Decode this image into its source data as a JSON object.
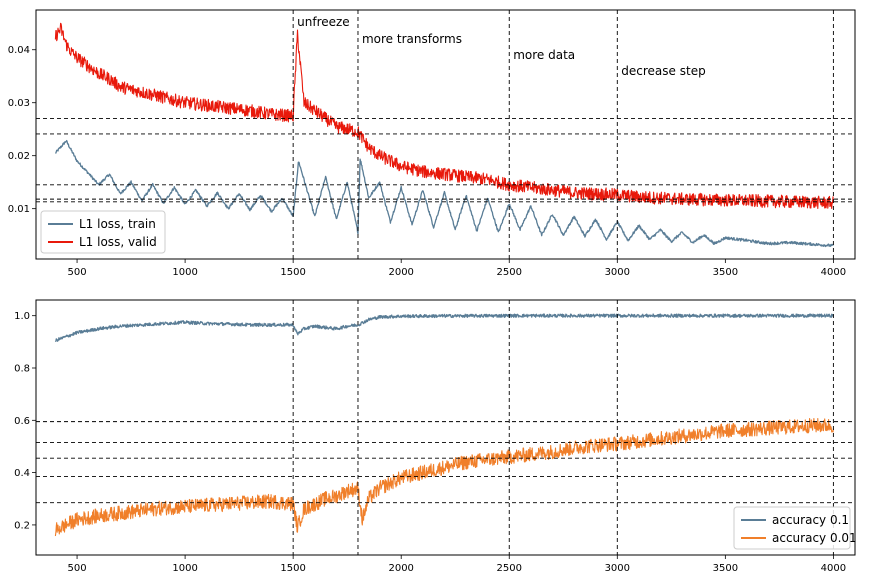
{
  "chart_data": [
    {
      "type": "line",
      "title": "",
      "xlabel": "",
      "ylabel": "",
      "xlim": [
        310,
        4100
      ],
      "ylim": [
        0.0005,
        0.0475
      ],
      "xticks": [
        500,
        1000,
        1500,
        2000,
        2500,
        3000,
        3500,
        4000
      ],
      "yticks": [
        0.01,
        0.02,
        0.03,
        0.04
      ],
      "xtick_labels": [
        "500",
        "1000",
        "1500",
        "2000",
        "2500",
        "3000",
        "3500",
        "4000"
      ],
      "ytick_labels": [
        "0.01",
        "0.02",
        "0.03",
        "0.04"
      ],
      "grid": false,
      "legend": "lower-left",
      "vlines": [
        1500,
        1800,
        2500,
        3000,
        4000
      ],
      "hlines": [
        0.027,
        0.0241,
        0.0145,
        0.0118,
        0.0113
      ],
      "annotations": [
        {
          "text": "unfreeze",
          "x": 1500,
          "y": 0.0445
        },
        {
          "text": "more transforms",
          "x": 1800,
          "y": 0.0415
        },
        {
          "text": "more data",
          "x": 2500,
          "y": 0.0385
        },
        {
          "text": "decrease step",
          "x": 3000,
          "y": 0.035
        }
      ],
      "series": [
        {
          "name": "L1 loss, train",
          "color": "#5a7d96",
          "x": [
            400,
            450,
            500,
            550,
            600,
            650,
            700,
            750,
            800,
            850,
            900,
            950,
            1000,
            1050,
            1100,
            1150,
            1200,
            1250,
            1300,
            1350,
            1400,
            1450,
            1500,
            1525,
            1550,
            1600,
            1650,
            1700,
            1750,
            1800,
            1810,
            1850,
            1900,
            1950,
            2000,
            2050,
            2100,
            2150,
            2200,
            2250,
            2300,
            2350,
            2400,
            2450,
            2500,
            2550,
            2600,
            2650,
            2700,
            2750,
            2800,
            2850,
            2900,
            2950,
            3000,
            3050,
            3100,
            3150,
            3200,
            3250,
            3300,
            3350,
            3400,
            3450,
            3500,
            3600,
            3700,
            3800,
            3900,
            4000
          ],
          "y": [
            0.0205,
            0.0228,
            0.019,
            0.0168,
            0.0145,
            0.0165,
            0.0128,
            0.015,
            0.0115,
            0.0145,
            0.011,
            0.014,
            0.0108,
            0.0135,
            0.0105,
            0.013,
            0.01,
            0.0128,
            0.0098,
            0.0125,
            0.0095,
            0.012,
            0.0085,
            0.019,
            0.0155,
            0.0085,
            0.016,
            0.008,
            0.015,
            0.0055,
            0.0195,
            0.012,
            0.015,
            0.0075,
            0.014,
            0.007,
            0.0135,
            0.0065,
            0.013,
            0.006,
            0.0125,
            0.0058,
            0.012,
            0.0055,
            0.011,
            0.006,
            0.0105,
            0.005,
            0.009,
            0.005,
            0.0085,
            0.0048,
            0.008,
            0.0042,
            0.0075,
            0.004,
            0.0068,
            0.0042,
            0.006,
            0.0038,
            0.0055,
            0.0036,
            0.005,
            0.0034,
            0.0045,
            0.004,
            0.0034,
            0.0036,
            0.0033,
            0.003
          ]
        },
        {
          "name": "L1 loss, valid",
          "color": "#e8190b",
          "x": [
            400,
            425,
            450,
            475,
            500,
            550,
            600,
            650,
            700,
            800,
            900,
            1000,
            1100,
            1200,
            1300,
            1400,
            1500,
            1520,
            1550,
            1600,
            1650,
            1700,
            1750,
            1800,
            1850,
            1900,
            1950,
            2000,
            2100,
            2200,
            2300,
            2400,
            2500,
            2600,
            2700,
            2800,
            2900,
            3000,
            3100,
            3200,
            3300,
            3400,
            3500,
            3600,
            3700,
            3800,
            3900,
            4000
          ],
          "y": [
            0.0425,
            0.044,
            0.041,
            0.0395,
            0.0385,
            0.037,
            0.0355,
            0.0345,
            0.033,
            0.032,
            0.031,
            0.03,
            0.0295,
            0.029,
            0.0285,
            0.0278,
            0.0275,
            0.043,
            0.03,
            0.0285,
            0.027,
            0.0255,
            0.025,
            0.0245,
            0.0215,
            0.02,
            0.019,
            0.018,
            0.017,
            0.0165,
            0.016,
            0.0155,
            0.0145,
            0.014,
            0.0135,
            0.013,
            0.0128,
            0.0126,
            0.0122,
            0.012,
            0.0118,
            0.0117,
            0.0116,
            0.0115,
            0.0114,
            0.0113,
            0.0112,
            0.0111
          ]
        }
      ]
    },
    {
      "type": "line",
      "title": "",
      "xlabel": "",
      "ylabel": "",
      "xlim": [
        310,
        4100
      ],
      "ylim": [
        0.085,
        1.06
      ],
      "xticks": [
        500,
        1000,
        1500,
        2000,
        2500,
        3000,
        3500,
        4000
      ],
      "yticks": [
        0.2,
        0.4,
        0.6,
        0.8,
        1.0
      ],
      "xtick_labels": [
        "500",
        "1000",
        "1500",
        "2000",
        "2500",
        "3000",
        "3500",
        "4000"
      ],
      "ytick_labels": [
        "0.2",
        "0.4",
        "0.6",
        "0.8",
        "1.0"
      ],
      "grid": false,
      "legend": "lower-right",
      "vlines": [
        1500,
        1800,
        2500,
        3000,
        4000
      ],
      "hlines": [
        0.595,
        0.515,
        0.455,
        0.385,
        0.285
      ],
      "series": [
        {
          "name": "accuracy 0.1",
          "color": "#5a7d96",
          "x": [
            400,
            450,
            500,
            600,
            700,
            800,
            900,
            1000,
            1100,
            1200,
            1300,
            1400,
            1500,
            1520,
            1550,
            1600,
            1650,
            1700,
            1750,
            1800,
            1850,
            1900,
            2000,
            2200,
            2500,
            3000,
            3500,
            4000
          ],
          "y": [
            0.905,
            0.92,
            0.935,
            0.95,
            0.96,
            0.965,
            0.97,
            0.975,
            0.97,
            0.968,
            0.965,
            0.965,
            0.965,
            0.93,
            0.95,
            0.96,
            0.955,
            0.95,
            0.96,
            0.965,
            0.985,
            0.995,
            0.998,
            0.999,
            1.0,
            1.0,
            1.0,
            1.0
          ]
        },
        {
          "name": "accuracy 0.01",
          "color": "#f07f2a",
          "x": [
            400,
            450,
            500,
            600,
            700,
            800,
            900,
            1000,
            1100,
            1200,
            1300,
            1400,
            1500,
            1520,
            1550,
            1600,
            1650,
            1700,
            1750,
            1800,
            1820,
            1850,
            1900,
            2000,
            2100,
            2200,
            2300,
            2400,
            2500,
            2600,
            2700,
            2800,
            2900,
            3000,
            3100,
            3200,
            3300,
            3400,
            3500,
            3600,
            3700,
            3800,
            3900,
            4000
          ],
          "y": [
            0.18,
            0.2,
            0.22,
            0.235,
            0.245,
            0.255,
            0.265,
            0.27,
            0.275,
            0.28,
            0.285,
            0.29,
            0.28,
            0.19,
            0.26,
            0.28,
            0.3,
            0.31,
            0.33,
            0.34,
            0.22,
            0.3,
            0.34,
            0.38,
            0.4,
            0.42,
            0.44,
            0.45,
            0.46,
            0.47,
            0.48,
            0.495,
            0.505,
            0.51,
            0.52,
            0.53,
            0.54,
            0.55,
            0.56,
            0.565,
            0.57,
            0.575,
            0.58,
            0.58
          ]
        }
      ]
    }
  ]
}
